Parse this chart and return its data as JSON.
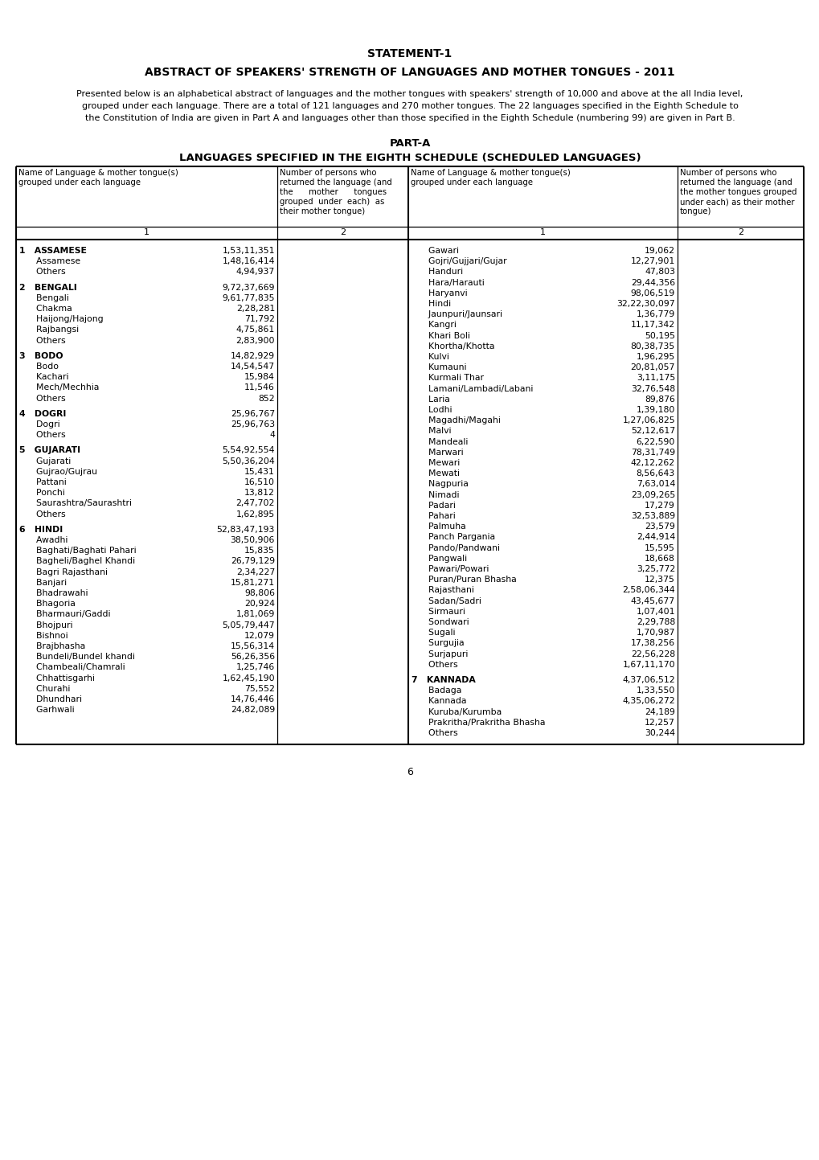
{
  "title1": "STATEMENT-1",
  "title2": "ABSTRACT OF SPEAKERS' STRENGTH OF LANGUAGES AND MOTHER TONGUES - 2011",
  "intro": [
    "Presented below is an alphabetical abstract of languages and the mother tongues with speakers' strength of 10,000 and above at the all India level,",
    "grouped under each language. There are a total of 121 languages and 270 mother tongues. The 22 languages specified in the Eighth Schedule to",
    "the Constitution of India are given in Part A and languages other than those specified in the Eighth Schedule (numbering 99) are given in Part B."
  ],
  "part_title": "PART-A",
  "table_title": "LANGUAGES SPECIFIED IN THE EIGHTH SCHEDULE (SCHEDULED LANGUAGES)",
  "hdr_L1": "Name of Language & mother tongue(s)\ngrouped under each language",
  "hdr_L2_lines": [
    "Number of persons who",
    "returned the language (and",
    "the      mother      tongues",
    "grouped  under  each)  as",
    "their mother tongue)"
  ],
  "hdr_R1": "Name of Language & mother tongue(s)\ngrouped under each language",
  "hdr_R2_lines": [
    "Number of persons who",
    "returned the language (and",
    "the mother tongues grouped",
    "under each) as their mother",
    "tongue)"
  ],
  "left_data": [
    {
      "num": "1",
      "lang": "ASSAMESE",
      "val": "1,53,11,351",
      "sub": [
        [
          "Assamese",
          "1,48,16,414"
        ],
        [
          "Others",
          "4,94,937"
        ]
      ]
    },
    {
      "num": "2",
      "lang": "BENGALI",
      "val": "9,72,37,669",
      "sub": [
        [
          "Bengali",
          "9,61,77,835"
        ],
        [
          "Chakma",
          "2,28,281"
        ],
        [
          "Haijong/Hajong",
          "71,792"
        ],
        [
          "Rajbangsi",
          "4,75,861"
        ],
        [
          "Others",
          "2,83,900"
        ]
      ]
    },
    {
      "num": "3",
      "lang": "BODO",
      "val": "14,82,929",
      "sub": [
        [
          "Bodo",
          "14,54,547"
        ],
        [
          "Kachari",
          "15,984"
        ],
        [
          "Mech/Mechhia",
          "11,546"
        ],
        [
          "Others",
          "852"
        ]
      ]
    },
    {
      "num": "4",
      "lang": "DOGRI",
      "val": "25,96,767",
      "sub": [
        [
          "Dogri",
          "25,96,763"
        ],
        [
          "Others",
          "4"
        ]
      ]
    },
    {
      "num": "5",
      "lang": "GUJARATI",
      "val": "5,54,92,554",
      "sub": [
        [
          "Gujarati",
          "5,50,36,204"
        ],
        [
          "Gujrao/Gujrau",
          "15,431"
        ],
        [
          "Pattani",
          "16,510"
        ],
        [
          "Ponchi",
          "13,812"
        ],
        [
          "Saurashtra/Saurashtri",
          "2,47,702"
        ],
        [
          "Others",
          "1,62,895"
        ]
      ]
    },
    {
      "num": "6",
      "lang": "HINDI",
      "val": "52,83,47,193",
      "sub": [
        [
          "Awadhi",
          "38,50,906"
        ],
        [
          "Baghati/Baghati Pahari",
          "15,835"
        ],
        [
          "Bagheli/Baghel Khandi",
          "26,79,129"
        ],
        [
          "Bagri Rajasthani",
          "2,34,227"
        ],
        [
          "Banjari",
          "15,81,271"
        ],
        [
          "Bhadrawahi",
          "98,806"
        ],
        [
          "Bhagoria",
          "20,924"
        ],
        [
          "Bharmauri/Gaddi",
          "1,81,069"
        ],
        [
          "Bhojpuri",
          "5,05,79,447"
        ],
        [
          "Bishnoi",
          "12,079"
        ],
        [
          "Brajbhasha",
          "15,56,314"
        ],
        [
          "Bundeli/Bundel khandi",
          "56,26,356"
        ],
        [
          "Chambeali/Chamrali",
          "1,25,746"
        ],
        [
          "Chhattisgarhi",
          "1,62,45,190"
        ],
        [
          "Churahi",
          "75,552"
        ],
        [
          "Dhundhari",
          "14,76,446"
        ],
        [
          "Garhwali",
          "24,82,089"
        ]
      ]
    }
  ],
  "right_sub_hindi": [
    [
      "Gawari",
      "19,062"
    ],
    [
      "Gojri/Gujjari/Gujar",
      "12,27,901"
    ],
    [
      "Handuri",
      "47,803"
    ],
    [
      "Hara/Harauti",
      "29,44,356"
    ],
    [
      "Haryanvi",
      "98,06,519"
    ],
    [
      "Hindi",
      "32,22,30,097"
    ],
    [
      "Jaunpuri/Jaunsari",
      "1,36,779"
    ],
    [
      "Kangri",
      "11,17,342"
    ],
    [
      "Khari Boli",
      "50,195"
    ],
    [
      "Khortha/Khotta",
      "80,38,735"
    ],
    [
      "Kulvi",
      "1,96,295"
    ],
    [
      "Kumauni",
      "20,81,057"
    ],
    [
      "Kurmali Thar",
      "3,11,175"
    ],
    [
      "Lamani/Lambadi/Labani",
      "32,76,548"
    ],
    [
      "Laria",
      "89,876"
    ],
    [
      "Lodhi",
      "1,39,180"
    ],
    [
      "Magadhi/Magahi",
      "1,27,06,825"
    ],
    [
      "Malvi",
      "52,12,617"
    ],
    [
      "Mandeali",
      "6,22,590"
    ],
    [
      "Marwari",
      "78,31,749"
    ],
    [
      "Mewari",
      "42,12,262"
    ],
    [
      "Mewati",
      "8,56,643"
    ],
    [
      "Nagpuria",
      "7,63,014"
    ],
    [
      "Nimadi",
      "23,09,265"
    ],
    [
      "Padari",
      "17,279"
    ],
    [
      "Pahari",
      "32,53,889"
    ],
    [
      "Palmuha",
      "23,579"
    ],
    [
      "Panch Pargania",
      "2,44,914"
    ],
    [
      "Pando/Pandwani",
      "15,595"
    ],
    [
      "Pangwali",
      "18,668"
    ],
    [
      "Pawari/Powari",
      "3,25,772"
    ],
    [
      "Puran/Puran Bhasha",
      "12,375"
    ],
    [
      "Rajasthani",
      "2,58,06,344"
    ],
    [
      "Sadan/Sadri",
      "43,45,677"
    ],
    [
      "Sirmauri",
      "1,07,401"
    ],
    [
      "Sondwari",
      "2,29,788"
    ],
    [
      "Sugali",
      "1,70,987"
    ],
    [
      "Surgujia",
      "17,38,256"
    ],
    [
      "Surjapuri",
      "22,56,228"
    ],
    [
      "Others",
      "1,67,11,170"
    ]
  ],
  "kannada_block": {
    "num": "7",
    "lang": "KANNADA",
    "val": "4,37,06,512",
    "sub": [
      [
        "Badaga",
        "1,33,550"
      ],
      [
        "Kannada",
        "4,35,06,272"
      ],
      [
        "Kuruba/Kurumba",
        "24,189"
      ],
      [
        "Prakritha/Prakritha Bhasha",
        "12,257"
      ],
      [
        "Others",
        "30,244"
      ]
    ]
  },
  "footer": "6"
}
